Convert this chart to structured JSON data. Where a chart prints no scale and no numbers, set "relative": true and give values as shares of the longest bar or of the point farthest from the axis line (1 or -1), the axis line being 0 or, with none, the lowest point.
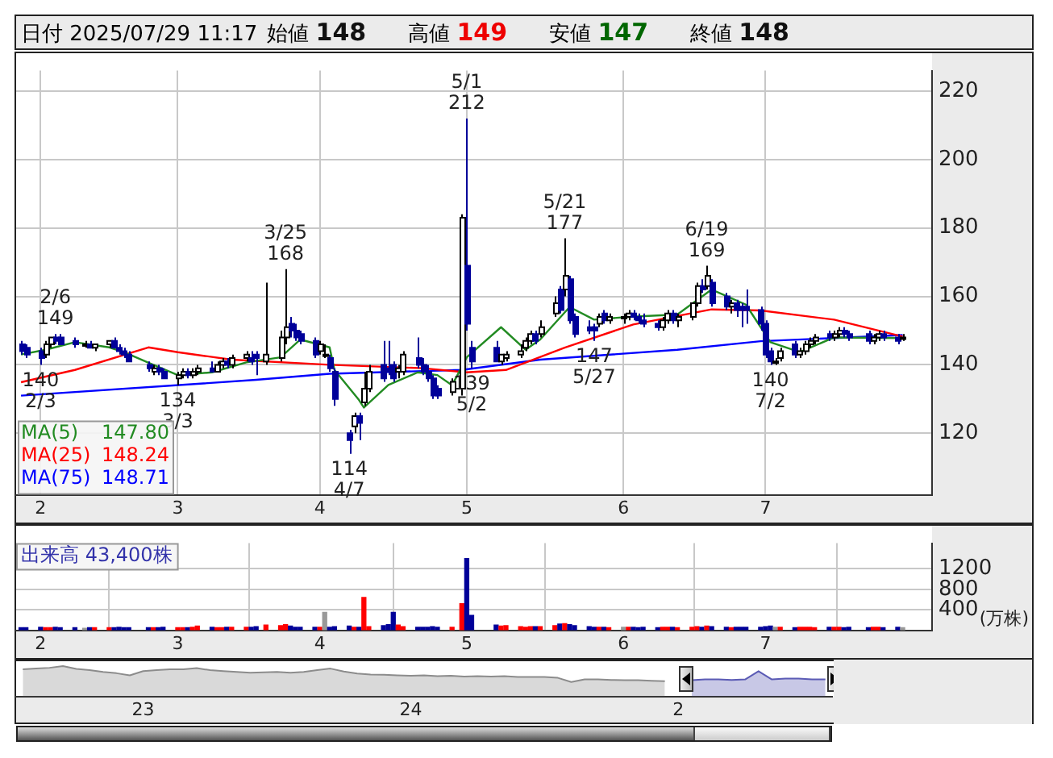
{
  "chart_data": [
    {
      "type": "candlestick",
      "title": "日付 2025/07/29 11:17",
      "grid": true,
      "legend": "bottom left",
      "colors": [
        "#000099",
        "#000099",
        "#000099",
        "#ffffff",
        "#ffffff",
        "#000099",
        "#000099",
        "#000099",
        "#ffffff",
        "#000099",
        "#ffffff",
        "#ffffff",
        "#000099",
        "#000099",
        "#000099",
        "#000099",
        "#000099",
        "#ffffff",
        "#000099",
        "#000099",
        "#ffffff",
        "#ffffff",
        "#000099",
        "#ffffff",
        "#ffffff",
        "#000099",
        "#ffffff",
        "#ffffff",
        "#000099",
        "#ffffff",
        "#ffffff",
        "#000099",
        "#000099",
        "#ffffff",
        "#ffffff",
        "#ffffff",
        "#000099",
        "#000099",
        "#000099",
        "#000099",
        "#ffffff",
        "#ffffff",
        "#000099",
        "#000099",
        "#000099",
        "#ffffff",
        "#000099",
        "#ffffff",
        "#ffffff",
        "#000099",
        "#000099",
        "#000099",
        "#ffffff",
        "#ffffff",
        "#000099",
        "#000099",
        "#000099",
        "#000099",
        "#000099",
        "#ffffff",
        "#ffffff",
        "#000099",
        "#000099",
        "#000099",
        "#ffffff",
        "#ffffff",
        "#ffffff",
        "#ffffff",
        "#ffffff",
        "#000099",
        "#ffffff",
        "#ffffff",
        "#000099",
        "#ffffff",
        "#000099",
        "#000099",
        "#000099",
        "#000099",
        "#ffffff",
        "#000099",
        "#ffffff",
        "#ffffff",
        "#ffffff",
        "#000099",
        "#000099",
        "#000099",
        "#000099",
        "#ffffff",
        "#ffffff",
        "#000099",
        "#ffffff",
        "#ffffff",
        "#ffffff",
        "#000099",
        "#ffffff",
        "#000099",
        "#000099",
        "#ffffff",
        "#000099",
        "#000099",
        "#000099",
        "#000099",
        "#000099",
        "#000099",
        "#ffffff",
        "#ffffff",
        "#000099",
        "#ffffff",
        "#ffffff",
        "#ffffff",
        "#ffffff",
        "#000099",
        "#ffffff",
        "#ffffff",
        "#000099",
        "#000099",
        "#000099",
        "#ffffff",
        "#ffffff",
        "#000099",
        "#000099",
        "#ffffff"
      ],
      "x": [
        "2025-01-30",
        "2025-01-31",
        "2025-02-03",
        "2025-02-04",
        "2025-02-05",
        "2025-02-06",
        "2025-02-07",
        "2025-02-10",
        "2025-02-12",
        "2025-02-13",
        "2025-02-14",
        "2025-02-17",
        "2025-02-18",
        "2025-02-19",
        "2025-02-20",
        "2025-02-21",
        "2025-02-25",
        "2025-02-26",
        "2025-02-27",
        "2025-02-28",
        "2025-03-03",
        "2025-03-04",
        "2025-03-05",
        "2025-03-06",
        "2025-03-07",
        "2025-03-10",
        "2025-03-11",
        "2025-03-12",
        "2025-03-13",
        "2025-03-14",
        "2025-03-17",
        "2025-03-18",
        "2025-03-19",
        "2025-03-21",
        "2025-03-24",
        "2025-03-25",
        "2025-03-26",
        "2025-03-27",
        "2025-03-28",
        "2025-03-31",
        "2025-04-01",
        "2025-04-02",
        "2025-04-03",
        "2025-04-04",
        "2025-04-07",
        "2025-04-08",
        "2025-04-09",
        "2025-04-10",
        "2025-04-11",
        "2025-04-14",
        "2025-04-15",
        "2025-04-16",
        "2025-04-17",
        "2025-04-18",
        "2025-04-21",
        "2025-04-22",
        "2025-04-23",
        "2025-04-24",
        "2025-04-25",
        "2025-04-28",
        "2025-04-30",
        "2025-05-01",
        "2025-05-02",
        "2025-05-07",
        "2025-05-08",
        "2025-05-09",
        "2025-05-12",
        "2025-05-13",
        "2025-05-14",
        "2025-05-15",
        "2025-05-16",
        "2025-05-19",
        "2025-05-20",
        "2025-05-21",
        "2025-05-22",
        "2025-05-23",
        "2025-05-26",
        "2025-05-27",
        "2025-05-28",
        "2025-05-29",
        "2025-05-30",
        "2025-06-02",
        "2025-06-03",
        "2025-06-04",
        "2025-06-05",
        "2025-06-06",
        "2025-06-09",
        "2025-06-10",
        "2025-06-11",
        "2025-06-12",
        "2025-06-13",
        "2025-06-16",
        "2025-06-17",
        "2025-06-18",
        "2025-06-19",
        "2025-06-20",
        "2025-06-23",
        "2025-06-24",
        "2025-06-25",
        "2025-06-26",
        "2025-06-27",
        "2025-06-30",
        "2025-07-01",
        "2025-07-02",
        "2025-07-03",
        "2025-07-04",
        "2025-07-07",
        "2025-07-08",
        "2025-07-09",
        "2025-07-10",
        "2025-07-11",
        "2025-07-14",
        "2025-07-15",
        "2025-07-16",
        "2025-07-17",
        "2025-07-18",
        "2025-07-22",
        "2025-07-23",
        "2025-07-24",
        "2025-07-25",
        "2025-07-28",
        "2025-07-29"
      ],
      "ohlc": [
        [
          146,
          147,
          143,
          144
        ],
        [
          145,
          146,
          142,
          143
        ],
        [
          144,
          145,
          140,
          142
        ],
        [
          143,
          147,
          142,
          146
        ],
        [
          146,
          148,
          145,
          148
        ],
        [
          148,
          149,
          146,
          147
        ],
        [
          148,
          149,
          146,
          146
        ],
        [
          147,
          148,
          145,
          146
        ],
        [
          146,
          147,
          145,
          146
        ],
        [
          146,
          147,
          145,
          145
        ],
        [
          145,
          146,
          144,
          146
        ],
        [
          146,
          147,
          145,
          147
        ],
        [
          147,
          148,
          145,
          145
        ],
        [
          145,
          146,
          143,
          144
        ],
        [
          144,
          145,
          142,
          143
        ],
        [
          143,
          144,
          141,
          141
        ],
        [
          140,
          141,
          138,
          139
        ],
        [
          138,
          140,
          137,
          139
        ],
        [
          139,
          140,
          137,
          138
        ],
        [
          138,
          139,
          136,
          136
        ],
        [
          136,
          138,
          134,
          137
        ],
        [
          137,
          139,
          136,
          138
        ],
        [
          138,
          139,
          136,
          137
        ],
        [
          137,
          139,
          136,
          138
        ],
        [
          138,
          140,
          137,
          139
        ],
        [
          139,
          141,
          138,
          138
        ],
        [
          138,
          141,
          138,
          140
        ],
        [
          140,
          142,
          139,
          141
        ],
        [
          141,
          142,
          139,
          140
        ],
        [
          140,
          143,
          139,
          142
        ],
        [
          142,
          144,
          141,
          143
        ],
        [
          142,
          144,
          140,
          141
        ],
        [
          143,
          144,
          137,
          142
        ],
        [
          141,
          164,
          140,
          143
        ],
        [
          142,
          150,
          141,
          148
        ],
        [
          148,
          168,
          146,
          151
        ],
        [
          152,
          154,
          148,
          150
        ],
        [
          150,
          152,
          147,
          148
        ],
        [
          149,
          150,
          146,
          147
        ],
        [
          147,
          148,
          142,
          143
        ],
        [
          144,
          147,
          143,
          146
        ],
        [
          143,
          146,
          142,
          143
        ],
        [
          142,
          143,
          138,
          139
        ],
        [
          138,
          139,
          128,
          130
        ],
        [
          120,
          121,
          114,
          118
        ],
        [
          122,
          126,
          120,
          125
        ],
        [
          125,
          126,
          118,
          123
        ],
        [
          129,
          138,
          128,
          133
        ],
        [
          133,
          140,
          132,
          138
        ],
        [
          140,
          147,
          135,
          136
        ],
        [
          139,
          147,
          137,
          138
        ],
        [
          140,
          141,
          135,
          136
        ],
        [
          138,
          140,
          136,
          139
        ],
        [
          138,
          144,
          137,
          143
        ],
        [
          142,
          148,
          139,
          140
        ],
        [
          140,
          142,
          137,
          138
        ],
        [
          138,
          140,
          135,
          136
        ],
        [
          136,
          137,
          130,
          131
        ],
        [
          133,
          134,
          130,
          131
        ],
        [
          132,
          136,
          131,
          135
        ],
        [
          133,
          184,
          131,
          183
        ],
        [
          169,
          212,
          150,
          152
        ],
        [
          145,
          147,
          139,
          141
        ],
        [
          145,
          147,
          141,
          141
        ],
        [
          141,
          143,
          140,
          143
        ],
        [
          142,
          144,
          141,
          143
        ],
        [
          143,
          146,
          142,
          144
        ],
        [
          145,
          148,
          144,
          147
        ],
        [
          147,
          150,
          146,
          149
        ],
        [
          149,
          150,
          146,
          147
        ],
        [
          149,
          153,
          148,
          151
        ],
        [
          155,
          160,
          154,
          158
        ],
        [
          162,
          163,
          155,
          156
        ],
        [
          162,
          177,
          160,
          166
        ],
        [
          165,
          166,
          152,
          153
        ],
        [
          154,
          155,
          148,
          149
        ],
        [
          151,
          153,
          149,
          150
        ],
        [
          151,
          152,
          147,
          150
        ],
        [
          152,
          155,
          151,
          154
        ],
        [
          155,
          156,
          152,
          153
        ],
        [
          153,
          155,
          152,
          154
        ],
        [
          154,
          155,
          152,
          154
        ],
        [
          154,
          156,
          153,
          155
        ],
        [
          155,
          156,
          153,
          154
        ],
        [
          154,
          155,
          152,
          153
        ],
        [
          153,
          155,
          151,
          152
        ],
        [
          152,
          153,
          150,
          151
        ],
        [
          151,
          154,
          150,
          153
        ],
        [
          153,
          156,
          152,
          155
        ],
        [
          155,
          156,
          152,
          153
        ],
        [
          153,
          155,
          151,
          154
        ],
        [
          154,
          158,
          153,
          158
        ],
        [
          158,
          164,
          157,
          163
        ],
        [
          163,
          165,
          161,
          162
        ],
        [
          163,
          169,
          162,
          166
        ],
        [
          164,
          165,
          157,
          158
        ],
        [
          160,
          161,
          156,
          157
        ],
        [
          157,
          159,
          155,
          158
        ],
        [
          158,
          159,
          154,
          156
        ],
        [
          157,
          158,
          151,
          156
        ],
        [
          157,
          162,
          152,
          156
        ],
        [
          156,
          157,
          150,
          152
        ],
        [
          152,
          153,
          142,
          143
        ],
        [
          144,
          145,
          140,
          141
        ],
        [
          141,
          142,
          140,
          141
        ],
        [
          142,
          145,
          141,
          144
        ],
        [
          146,
          147,
          142,
          143
        ],
        [
          143,
          145,
          142,
          144
        ],
        [
          144,
          147,
          143,
          146
        ],
        [
          146,
          148,
          145,
          147
        ],
        [
          147,
          149,
          146,
          148
        ],
        [
          149,
          150,
          147,
          148
        ],
        [
          148,
          150,
          147,
          149
        ],
        [
          149,
          151,
          148,
          150
        ],
        [
          150,
          151,
          148,
          149
        ],
        [
          149,
          150,
          147,
          148
        ],
        [
          149,
          150,
          146,
          147
        ],
        [
          147,
          149,
          146,
          148
        ],
        [
          148,
          150,
          147,
          149
        ],
        [
          149,
          150,
          147,
          148
        ],
        [
          148,
          149,
          146,
          147
        ],
        [
          148,
          149,
          147,
          148
        ]
      ],
      "series": [
        {
          "type": "line",
          "name": "MA(5)",
          "color": "#228b22",
          "x": [
            "2025-01-30",
            "2025-02-04",
            "2025-02-10",
            "2025-02-17",
            "2025-02-20",
            "2025-02-26",
            "2025-03-03",
            "2025-03-10",
            "2025-03-17",
            "2025-03-24",
            "2025-03-28",
            "2025-04-03",
            "2025-04-04",
            "2025-04-09",
            "2025-04-10",
            "2025-04-15",
            "2025-04-21",
            "2025-04-25",
            "2025-04-28",
            "2025-05-01",
            "2025-05-08",
            "2025-05-13",
            "2025-05-16",
            "2025-05-22",
            "2025-05-27",
            "2025-06-03",
            "2025-06-13",
            "2025-06-20",
            "2025-06-27",
            "2025-07-02",
            "2025-07-08",
            "2025-07-15",
            "2025-07-29"
          ],
          "values": [
            143,
            144.4,
            146.6,
            145.1,
            143.7,
            140,
            137,
            137.8,
            140.7,
            142.2,
            147.4,
            145.1,
            138.5,
            129.7,
            127.5,
            134.1,
            137.8,
            137,
            134,
            142.2,
            151,
            144.4,
            147.4,
            156.9,
            153.2,
            154,
            154.7,
            162,
            157.6,
            146.6,
            143.7,
            148,
            147.8
          ]
        },
        {
          "type": "line",
          "name": "MA(25)",
          "color": "#ff0000",
          "x": [
            "2025-01-30",
            "2025-02-10",
            "2025-02-25",
            "2025-03-03",
            "2025-03-14",
            "2025-04-03",
            "2025-04-22",
            "2025-05-01",
            "2025-05-09",
            "2025-05-21",
            "2025-06-04",
            "2025-06-20",
            "2025-06-30",
            "2025-07-15",
            "2025-07-29"
          ],
          "values": [
            134.9,
            138.5,
            145.1,
            143.7,
            141.5,
            140,
            139,
            137.8,
            138.5,
            145,
            151.8,
            156.2,
            155.9,
            153.2,
            148.24
          ]
        },
        {
          "type": "line",
          "name": "MA(75)",
          "color": "#0000ff",
          "x": [
            "2025-01-30",
            "2025-03-19",
            "2025-04-03",
            "2025-04-30",
            "2025-05-16",
            "2025-06-13",
            "2025-06-30",
            "2025-07-29"
          ],
          "values": [
            131,
            135.6,
            137.4,
            138.5,
            141.5,
            144.4,
            146.9,
            148.71
          ]
        }
      ],
      "xlim": [
        "2025-01-29",
        "2025-08-04"
      ],
      "xticks": [
        {
          "value": "2025-02-03",
          "label": "2"
        },
        {
          "value": "2025-03-03",
          "label": "3"
        },
        {
          "value": "2025-04-01",
          "label": "4"
        },
        {
          "value": "2025-05-01",
          "label": "5"
        },
        {
          "value": "2025-06-02",
          "label": "6"
        },
        {
          "value": "2025-07-01",
          "label": "7"
        }
      ],
      "ylim": [
        102,
        226
      ],
      "yticks": [
        120,
        140,
        160,
        180,
        200,
        220
      ],
      "annotations": [
        "始値 148",
        "高値 149",
        "安値 147",
        "終値 148",
        "147.80",
        "148.24",
        "148.71",
        {
          "text": "140 2/3",
          "x": "2025-02-03",
          "y": 140
        },
        {
          "text": "2/6 149",
          "x": "2025-02-06",
          "y": 149
        },
        {
          "text": "134 3/3",
          "x": "2025-03-03",
          "y": 134
        },
        {
          "text": "3/25 168",
          "x": "2025-03-25",
          "y": 168
        },
        {
          "text": "114 4/7",
          "x": "2025-04-07",
          "y": 114
        },
        {
          "text": "5/1 212",
          "x": "2025-05-01",
          "y": 212
        },
        {
          "text": "139 5/2",
          "x": "2025-05-02",
          "y": 139
        },
        {
          "text": "5/21 177",
          "x": "2025-05-21",
          "y": 177
        },
        {
          "text": "147 5/27",
          "x": "2025-05-27",
          "y": 147
        },
        {
          "text": "6/19 169",
          "x": "2025-06-19",
          "y": 169
        },
        {
          "text": "140 7/2",
          "x": "2025-07-02",
          "y": 140
        }
      ]
    },
    {
      "type": "bar",
      "title": "出来高 43,400株",
      "ylabel": "(万株)",
      "grid": true,
      "x": [
        "2025-01-30",
        "2025-01-31",
        "2025-02-03",
        "2025-02-04",
        "2025-02-05",
        "2025-02-06",
        "2025-02-07",
        "2025-02-10",
        "2025-02-12",
        "2025-02-13",
        "2025-02-14",
        "2025-02-17",
        "2025-02-18",
        "2025-02-19",
        "2025-02-20",
        "2025-02-21",
        "2025-02-25",
        "2025-02-26",
        "2025-02-27",
        "2025-02-28",
        "2025-03-03",
        "2025-03-04",
        "2025-03-05",
        "2025-03-06",
        "2025-03-07",
        "2025-03-10",
        "2025-03-11",
        "2025-03-12",
        "2025-03-13",
        "2025-03-14",
        "2025-03-17",
        "2025-03-18",
        "2025-03-19",
        "2025-03-21",
        "2025-03-24",
        "2025-03-25",
        "2025-03-26",
        "2025-03-27",
        "2025-03-28",
        "2025-03-31",
        "2025-04-01",
        "2025-04-02",
        "2025-04-03",
        "2025-04-04",
        "2025-04-07",
        "2025-04-08",
        "2025-04-09",
        "2025-04-10",
        "2025-04-11",
        "2025-04-14",
        "2025-04-15",
        "2025-04-16",
        "2025-04-17",
        "2025-04-18",
        "2025-04-21",
        "2025-04-22",
        "2025-04-23",
        "2025-04-24",
        "2025-04-25",
        "2025-04-28",
        "2025-04-30",
        "2025-05-01",
        "2025-05-02",
        "2025-05-07",
        "2025-05-08",
        "2025-05-09",
        "2025-05-12",
        "2025-05-13",
        "2025-05-14",
        "2025-05-15",
        "2025-05-16",
        "2025-05-19",
        "2025-05-20",
        "2025-05-21",
        "2025-05-22",
        "2025-05-23",
        "2025-05-26",
        "2025-05-27",
        "2025-05-28",
        "2025-05-29",
        "2025-05-30",
        "2025-06-02",
        "2025-06-03",
        "2025-06-04",
        "2025-06-05",
        "2025-06-06",
        "2025-06-09",
        "2025-06-10",
        "2025-06-11",
        "2025-06-12",
        "2025-06-13",
        "2025-06-16",
        "2025-06-17",
        "2025-06-18",
        "2025-06-19",
        "2025-06-20",
        "2025-06-23",
        "2025-06-24",
        "2025-06-25",
        "2025-06-26",
        "2025-06-27",
        "2025-06-30",
        "2025-07-01",
        "2025-07-02",
        "2025-07-03",
        "2025-07-04",
        "2025-07-07",
        "2025-07-08",
        "2025-07-09",
        "2025-07-10",
        "2025-07-11",
        "2025-07-14",
        "2025-07-15",
        "2025-07-16",
        "2025-07-17",
        "2025-07-18",
        "2025-07-22",
        "2025-07-23",
        "2025-07-24",
        "2025-07-25",
        "2025-07-28",
        "2025-07-29"
      ],
      "values": [
        50,
        50,
        60,
        50,
        50,
        60,
        50,
        50,
        40,
        50,
        50,
        50,
        50,
        60,
        50,
        50,
        50,
        50,
        50,
        60,
        50,
        50,
        50,
        60,
        80,
        60,
        50,
        50,
        60,
        60,
        60,
        60,
        70,
        100,
        90,
        110,
        80,
        60,
        60,
        60,
        60,
        350,
        60,
        70,
        80,
        60,
        60,
        640,
        70,
        90,
        110,
        350,
        100,
        70,
        60,
        60,
        60,
        70,
        60,
        60,
        520,
        1400,
        290,
        100,
        80,
        90,
        70,
        60,
        70,
        70,
        70,
        90,
        120,
        130,
        110,
        90,
        70,
        60,
        60,
        60,
        50,
        60,
        60,
        60,
        50,
        60,
        50,
        60,
        60,
        60,
        50,
        60,
        70,
        60,
        80,
        70,
        60,
        50,
        60,
        60,
        60,
        60,
        70,
        80,
        60,
        60,
        50,
        60,
        60,
        60,
        50,
        60,
        60,
        60,
        50,
        60,
        50,
        60,
        60,
        50,
        60,
        50
      ],
      "colors": [
        "#000099",
        "#000099",
        "#000099",
        "#ff0000",
        "#ff0000",
        "#000099",
        "#000099",
        "#000099",
        "#999999",
        "#000099",
        "#ff0000",
        "#ff0000",
        "#000099",
        "#000099",
        "#000099",
        "#000099",
        "#000099",
        "#ff0000",
        "#000099",
        "#000099",
        "#ff0000",
        "#ff0000",
        "#000099",
        "#ff0000",
        "#ff0000",
        "#000099",
        "#ff0000",
        "#ff0000",
        "#000099",
        "#ff0000",
        "#ff0000",
        "#000099",
        "#000099",
        "#ff0000",
        "#ff0000",
        "#ff0000",
        "#000099",
        "#000099",
        "#000099",
        "#000099",
        "#ff0000",
        "#999999",
        "#000099",
        "#000099",
        "#000099",
        "#ff0000",
        "#000099",
        "#ff0000",
        "#ff0000",
        "#000099",
        "#000099",
        "#000099",
        "#ff0000",
        "#ff0000",
        "#000099",
        "#000099",
        "#000099",
        "#000099",
        "#000099",
        "#ff0000",
        "#ff0000",
        "#000099",
        "#000099",
        "#000099",
        "#ff0000",
        "#ff0000",
        "#ff0000",
        "#ff0000",
        "#ff0000",
        "#000099",
        "#ff0000",
        "#ff0000",
        "#000099",
        "#ff0000",
        "#000099",
        "#000099",
        "#000099",
        "#000099",
        "#ff0000",
        "#000099",
        "#ff0000",
        "#999999",
        "#ff0000",
        "#000099",
        "#000099",
        "#000099",
        "#000099",
        "#ff0000",
        "#ff0000",
        "#000099",
        "#ff0000",
        "#ff0000",
        "#ff0000",
        "#000099",
        "#ff0000",
        "#000099",
        "#000099",
        "#ff0000",
        "#000099",
        "#000099",
        "#000099",
        "#000099",
        "#000099",
        "#000099",
        "#999999",
        "#ff0000",
        "#000099",
        "#ff0000",
        "#ff0000",
        "#ff0000",
        "#ff0000",
        "#000099",
        "#ff0000",
        "#ff0000",
        "#000099",
        "#000099",
        "#000099",
        "#ff0000",
        "#ff0000",
        "#000099",
        "#000099",
        "#999999"
      ],
      "xlim": [
        "2025-01-29",
        "2025-08-04"
      ],
      "xticks": [
        {
          "value": "2025-02-03",
          "label": "2"
        },
        {
          "value": "2025-03-03",
          "label": "3"
        },
        {
          "value": "2025-04-01",
          "label": "4"
        },
        {
          "value": "2025-05-01",
          "label": "5"
        },
        {
          "value": "2025-06-02",
          "label": "6"
        },
        {
          "value": "2025-07-01",
          "label": "7"
        }
      ],
      "ylim": [
        0,
        1700
      ],
      "yticks": [
        400,
        800,
        1200
      ]
    },
    {
      "type": "area",
      "relative": true,
      "categories": [
        null,
        null,
        null,
        null,
        null,
        null,
        null,
        null,
        null,
        "23",
        null,
        null,
        null,
        null,
        null,
        null,
        null,
        null,
        null,
        null,
        null,
        null,
        null,
        null,
        null,
        null,
        null,
        null,
        null,
        "24",
        null,
        null,
        null,
        null,
        null,
        null,
        null,
        null,
        null,
        null,
        null,
        null,
        null,
        null,
        null,
        null,
        null,
        null,
        null,
        "2",
        null,
        null,
        null,
        null,
        null,
        null,
        null,
        null,
        null,
        null,
        null
      ],
      "series": [
        {
          "color": "#8c8c8c",
          "values": [
            0.79,
            0.84,
            0.89,
            1,
            0.82,
            0.74,
            0.63,
            0.55,
            0.42,
            0.68,
            0.74,
            0.79,
            0.79,
            0.87,
            0.74,
            0.68,
            0.63,
            0.58,
            0.61,
            0.63,
            0.58,
            0.63,
            0.74,
            0.84,
            0.66,
            0.53,
            0.47,
            0.45,
            0.42,
            0.39,
            0.42,
            0.37,
            0.39,
            0.34,
            0.37,
            0.34,
            0.37,
            0.32,
            0.32,
            0.32,
            0.26,
            0,
            0.16,
            0.16,
            0.13,
            0.11,
            0.11,
            0.08,
            0.05,
            null,
            null,
            null,
            null,
            null,
            null,
            null,
            null,
            null,
            null,
            null,
            null
          ]
        },
        {
          "color": "#5b5bb5",
          "values": [
            null,
            null,
            null,
            null,
            null,
            null,
            null,
            null,
            null,
            null,
            null,
            null,
            null,
            null,
            null,
            null,
            null,
            null,
            null,
            null,
            null,
            null,
            null,
            null,
            null,
            null,
            null,
            null,
            null,
            null,
            null,
            null,
            null,
            null,
            null,
            null,
            null,
            null,
            null,
            null,
            null,
            null,
            null,
            null,
            null,
            null,
            null,
            null,
            null,
            null,
            0.11,
            0.16,
            0.16,
            0.13,
            0.16,
            0.68,
            0.16,
            0.21,
            0.21,
            0.16,
            0.16
          ]
        }
      ]
    }
  ]
}
